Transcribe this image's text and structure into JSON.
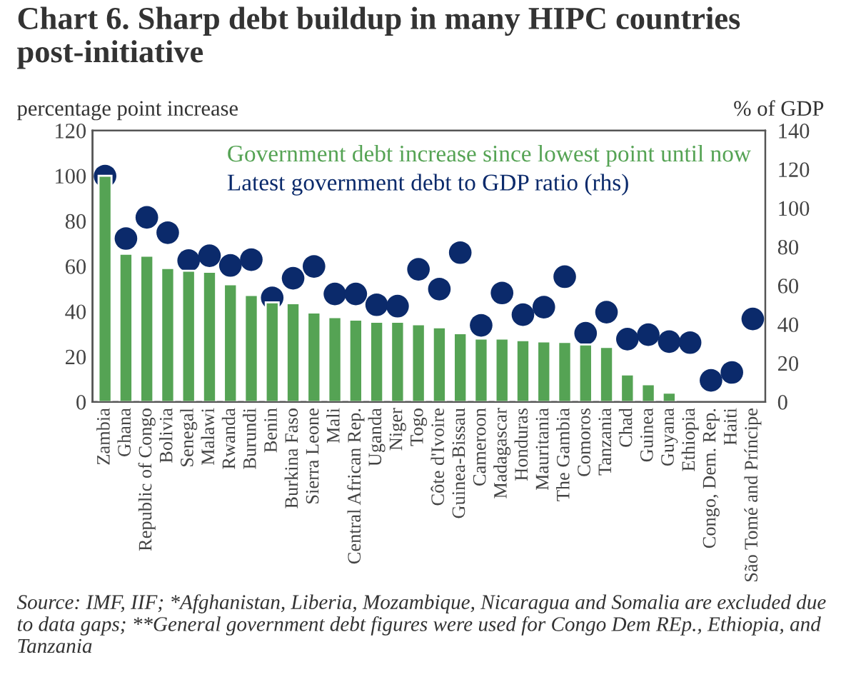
{
  "chart_data": {
    "type": "bar",
    "title": "Chart 6. Sharp debt buildup in many HIPC countries post-initiative",
    "ylabel": "percentage point increase",
    "y2label": "% of GDP",
    "categories": [
      "Zambia",
      "Ghana",
      "Republic of Congo",
      "Bolivia",
      "Senegal",
      "Malawi",
      "Rwanda",
      "Burundi",
      "Benin",
      "Burkina Faso",
      "Sierra Leone",
      "Mali",
      "Central African Rep.",
      "Uganda",
      "Niger",
      "Togo",
      "Côte d'Ivoire",
      "Guinea-Bissau",
      "Cameroon",
      "Madagascar",
      "Honduras",
      "Mauritania",
      "The Gambia",
      "Comoros",
      "Tanzania",
      "Chad",
      "Guinea",
      "Guyana",
      "Ethiopia",
      "Congo, Dem. Rep.",
      "Haiti",
      "São Tomé and Príncipe"
    ],
    "series": [
      {
        "name": "Government debt increase since lowest point until now",
        "color": "#55a354",
        "values": [
          100,
          65.5,
          64.6,
          59.2,
          58,
          57.5,
          52,
          47.3,
          44,
          43.6,
          39.5,
          37.5,
          36.4,
          35.4,
          35.4,
          34.3,
          33,
          30.4,
          28,
          28,
          27.3,
          26.7,
          26.5,
          25.4,
          24.3,
          12.1,
          7.8,
          4.1,
          null,
          null,
          null,
          null
        ]
      },
      {
        "name": "Latest government debt to GDP ratio (rhs)",
        "color": "#0b2a6b",
        "type": "scatter",
        "axis": "y2",
        "values": [
          116.5,
          84.3,
          95.2,
          87.3,
          72.9,
          75.4,
          70.4,
          73.4,
          53.7,
          63.8,
          69.9,
          55.7,
          55.7,
          50.1,
          49.4,
          68.4,
          58.2,
          77,
          39.5,
          56.2,
          45,
          48.9,
          64.6,
          35.4,
          46.3,
          32.4,
          34.7,
          31.1,
          30.6,
          11.1,
          15.2,
          42.8
        ]
      }
    ],
    "ylim": [
      0,
      120
    ],
    "yticks": [
      0,
      20,
      40,
      60,
      80,
      100,
      120
    ],
    "y2lim": [
      0,
      140
    ],
    "y2ticks": [
      0,
      20,
      40,
      60,
      80,
      100,
      120,
      140
    ],
    "grid": false,
    "legend": "top right",
    "marker": "circle",
    "annotations": [
      "Source: IMF, IIF; *Afghanistan, Liberia, Mozambique, Nicaragua and Somalia are excluded due to data gaps; **General government debt figures were used for Congo Dem REp., Ethiopia, and Tanzania"
    ]
  }
}
